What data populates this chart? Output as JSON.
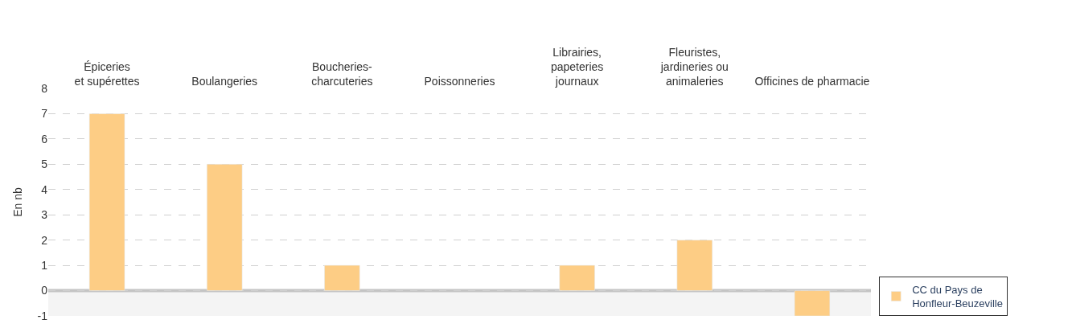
{
  "chart_data": {
    "type": "bar",
    "ylabel": "En nb",
    "categories": [
      "Épiceries\net supérettes",
      "Boulangeries",
      "Boucheries-\ncharcuteries",
      "Poissonneries",
      "Librairies,\npapeteries\njournaux",
      "Fleuristes,\njardineries ou\nanimaleries",
      "Officines de pharmacie"
    ],
    "series": [
      {
        "name": "CC du Pays de\nHonfleur-Beuzeville",
        "color": "#fdcd85",
        "values": [
          7,
          5,
          1,
          null,
          1,
          2,
          -1
        ]
      }
    ],
    "ylim": [
      -1,
      8
    ],
    "yticks": [
      -1,
      0,
      1,
      2,
      3,
      4,
      5,
      6,
      7,
      8
    ],
    "ref_lines": [
      {
        "axis": "y",
        "value": 0,
        "color": "#c4c4c4"
      }
    ],
    "bands": [
      {
        "axis": "y",
        "from": -1,
        "to": 0,
        "color": "#f4f4f4"
      }
    ],
    "grid": "y",
    "legend": "bottom right"
  }
}
